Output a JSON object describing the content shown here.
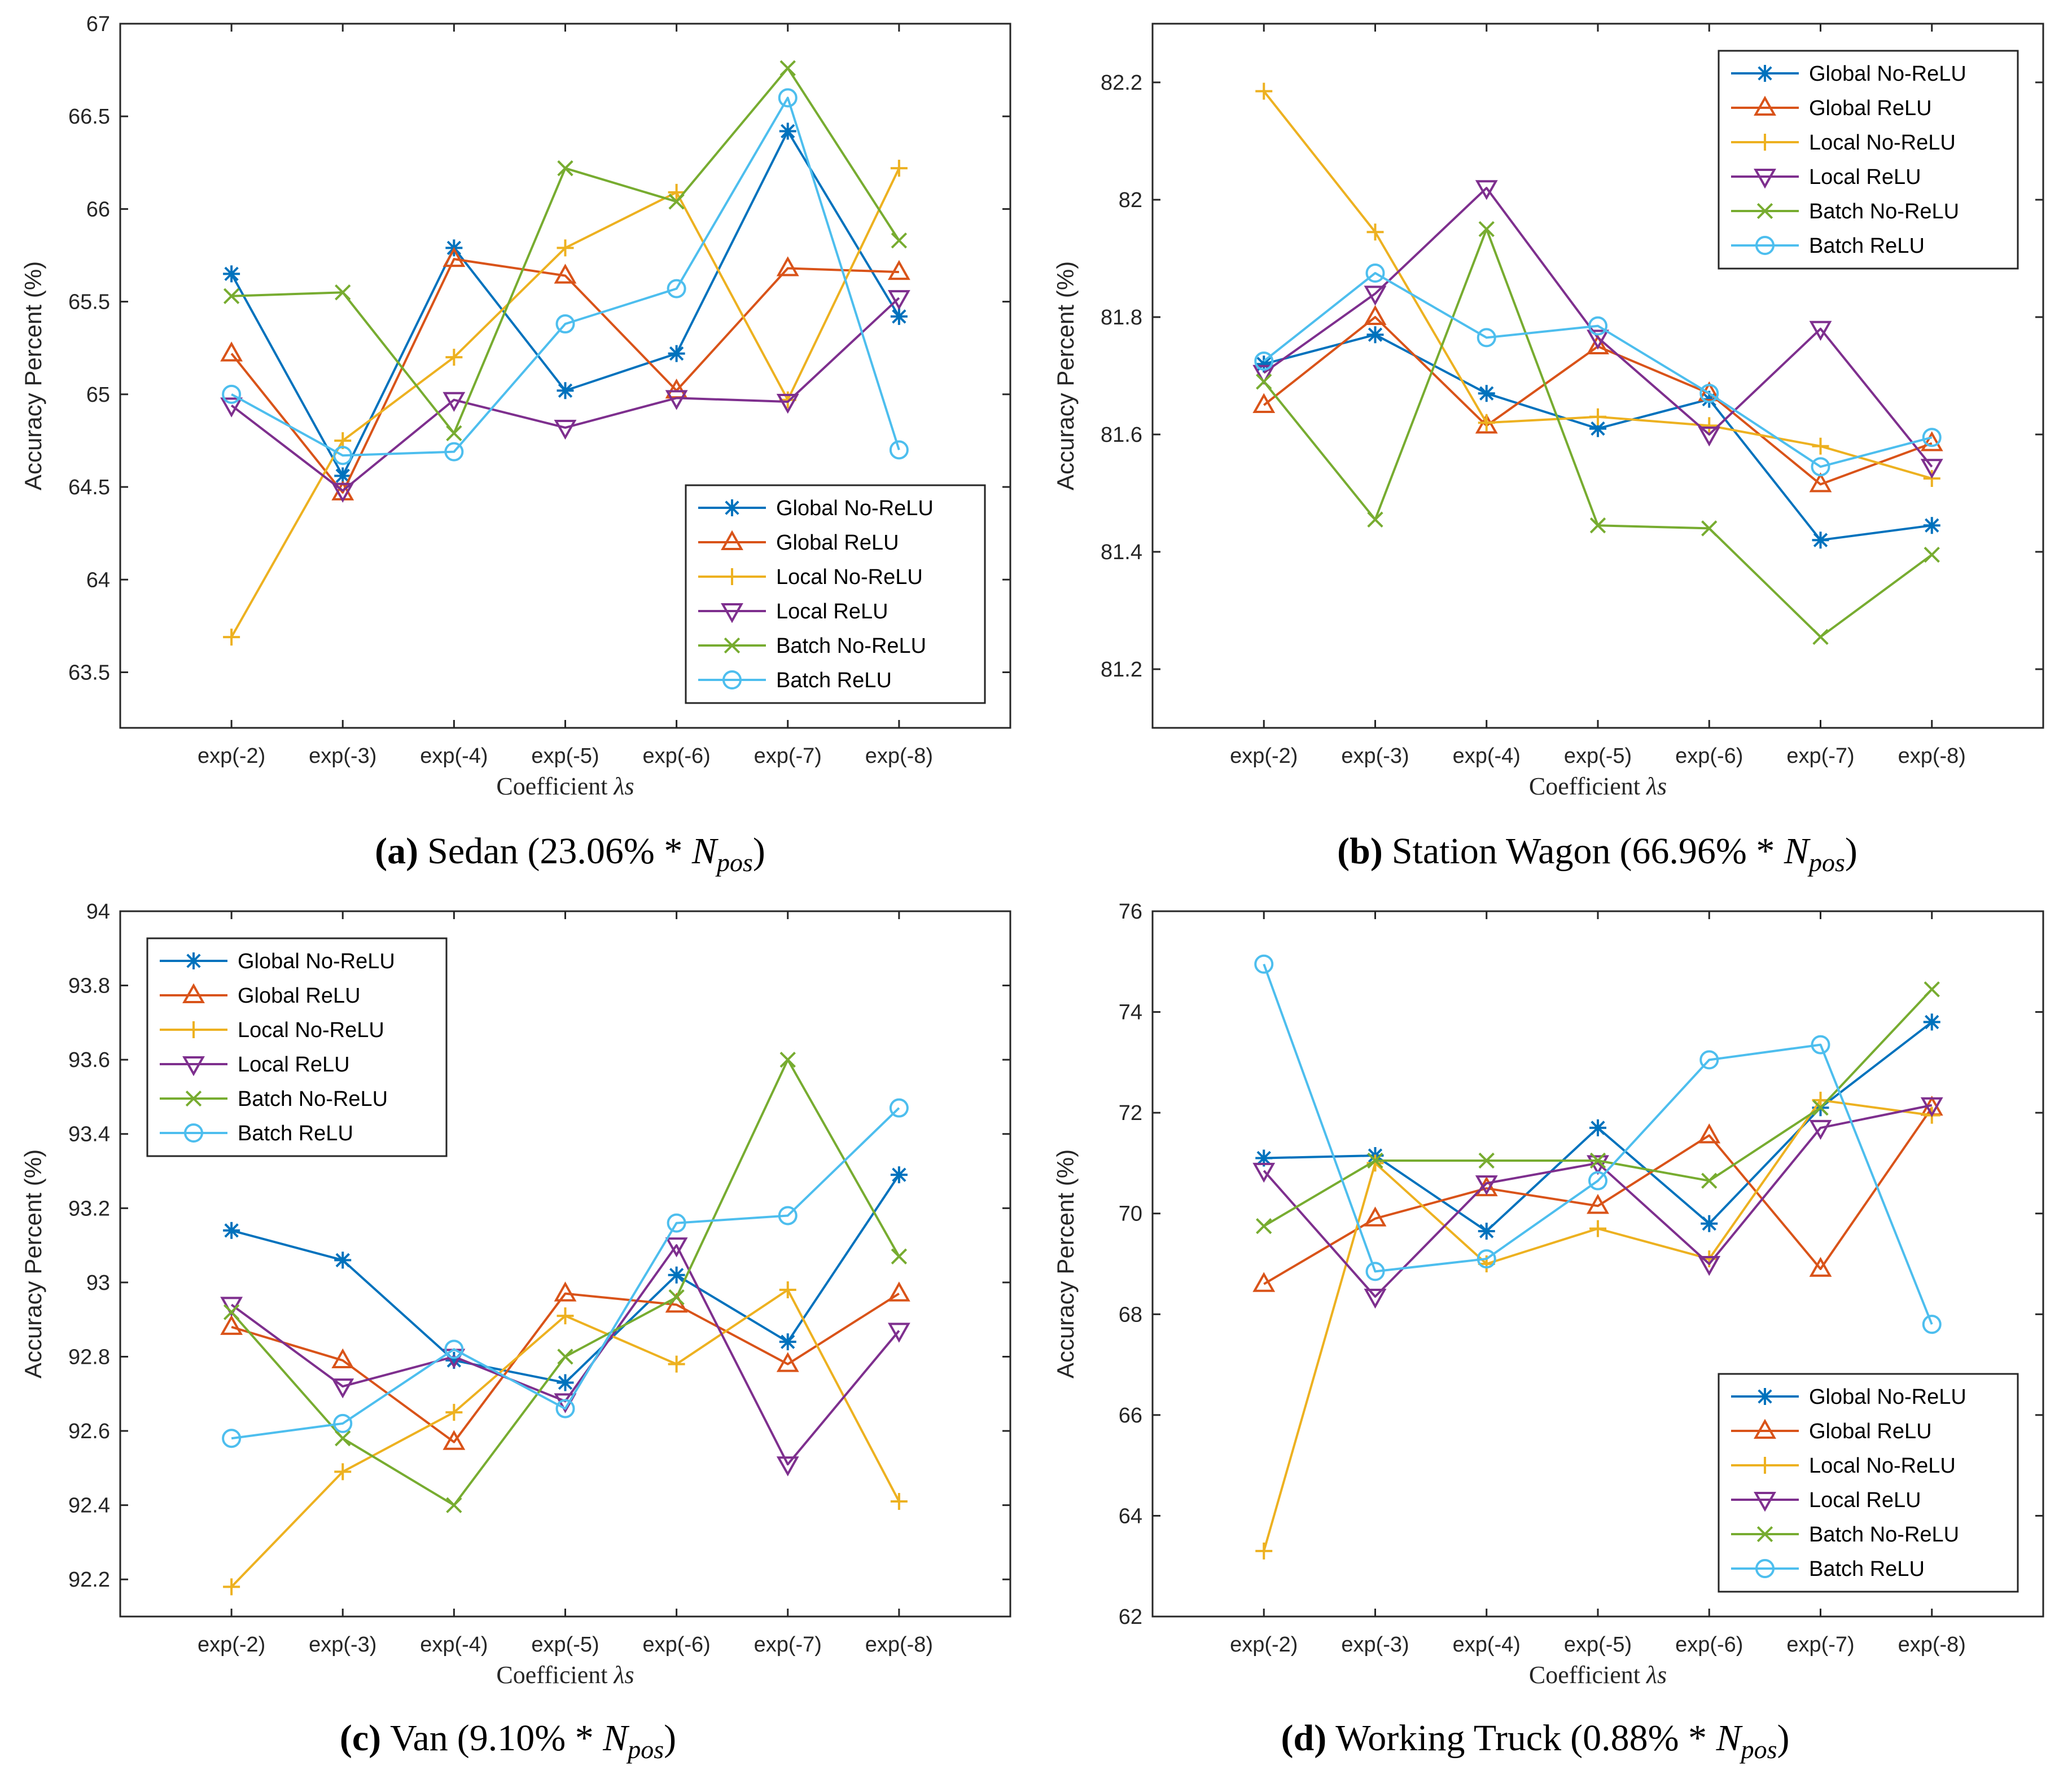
{
  "figure": {
    "colors": {
      "Global No-ReLU": "#0072BD",
      "Global ReLU": "#D95319",
      "Local No-ReLU": "#EDB120",
      "Local ReLU": "#7E2F8E",
      "Batch No-ReLU": "#77AC30",
      "Batch ReLU": "#4DBEEE"
    }
  },
  "chart_data": [
    {
      "type": "line",
      "panel": "a",
      "caption": {
        "letter": "(a)",
        "name": "Sedan",
        "share": "(23.06% * ",
        "var_main": "N",
        "var_sub": "pos",
        "close": ")"
      },
      "xlabel": {
        "text": "Coefficient ",
        "symbol": "λs"
      },
      "ylabel": "Accuracy Percent (%)",
      "categories": [
        "exp(-2)",
        "exp(-3)",
        "exp(-4)",
        "exp(-5)",
        "exp(-6)",
        "exp(-7)",
        "exp(-8)"
      ],
      "ylim": [
        63.2,
        67
      ],
      "yticks": [
        63.5,
        64,
        64.5,
        65,
        65.5,
        66,
        66.5,
        67
      ],
      "ytick_labels": [
        "63.5",
        "64",
        "64.5",
        "65",
        "65.5",
        "66",
        "66.5",
        "67"
      ],
      "legend_position": "bottom-right",
      "series": [
        {
          "name": "Global No-ReLU",
          "marker": "asterisk",
          "values": [
            65.65,
            64.56,
            65.79,
            65.02,
            65.22,
            66.42,
            65.42
          ]
        },
        {
          "name": "Global ReLU",
          "marker": "triangle",
          "values": [
            65.22,
            64.47,
            65.73,
            65.64,
            65.02,
            65.68,
            65.66
          ]
        },
        {
          "name": "Local No-ReLU",
          "marker": "plus",
          "values": [
            63.69,
            64.75,
            65.2,
            65.79,
            66.09,
            64.97,
            66.22
          ]
        },
        {
          "name": "Local ReLU",
          "marker": "triangle-down",
          "values": [
            64.94,
            64.48,
            64.97,
            64.82,
            64.98,
            64.96,
            65.52
          ]
        },
        {
          "name": "Batch No-ReLU",
          "marker": "x",
          "values": [
            65.53,
            65.55,
            64.79,
            66.22,
            66.04,
            66.76,
            65.83
          ]
        },
        {
          "name": "Batch ReLU",
          "marker": "circle",
          "values": [
            65.0,
            64.67,
            64.69,
            65.38,
            65.57,
            66.6,
            64.7
          ]
        }
      ]
    },
    {
      "type": "line",
      "panel": "b",
      "caption": {
        "letter": "(b)",
        "name": "Station Wagon",
        "share": "(66.96% * ",
        "var_main": "N",
        "var_sub": "pos",
        "close": ")"
      },
      "xlabel": {
        "text": "Coefficient ",
        "symbol": "λs"
      },
      "ylabel": "Accuracy Percent (%)",
      "categories": [
        "exp(-2)",
        "exp(-3)",
        "exp(-4)",
        "exp(-5)",
        "exp(-6)",
        "exp(-7)",
        "exp(-8)"
      ],
      "ylim": [
        81.1,
        82.3
      ],
      "yticks": [
        81.2,
        81.4,
        81.6,
        81.8,
        82,
        82.2
      ],
      "ytick_labels": [
        "81.2",
        "81.4",
        "81.6",
        "81.8",
        "82",
        "82.2"
      ],
      "legend_position": "top-right",
      "series": [
        {
          "name": "Global No-ReLU",
          "marker": "asterisk",
          "values": [
            81.72,
            81.77,
            81.67,
            81.61,
            81.66,
            81.42,
            81.445
          ]
        },
        {
          "name": "Global ReLU",
          "marker": "triangle",
          "values": [
            81.65,
            81.8,
            81.615,
            81.75,
            81.67,
            81.515,
            81.585
          ]
        },
        {
          "name": "Local No-ReLU",
          "marker": "plus",
          "values": [
            82.185,
            81.945,
            81.62,
            81.63,
            81.615,
            81.58,
            81.525
          ]
        },
        {
          "name": "Local ReLU",
          "marker": "triangle-down",
          "values": [
            81.705,
            81.84,
            82.02,
            81.765,
            81.6,
            81.78,
            81.545
          ]
        },
        {
          "name": "Batch No-ReLU",
          "marker": "x",
          "values": [
            81.69,
            81.455,
            81.95,
            81.445,
            81.44,
            81.255,
            81.395
          ]
        },
        {
          "name": "Batch ReLU",
          "marker": "circle",
          "values": [
            81.725,
            81.875,
            81.765,
            81.785,
            81.67,
            81.545,
            81.595
          ]
        }
      ]
    },
    {
      "type": "line",
      "panel": "c",
      "caption": {
        "letter": "(c)",
        "name": "Van",
        "share": "(9.10% * ",
        "var_main": "N",
        "var_sub": "pos",
        "close": ")"
      },
      "xlabel": {
        "text": "Coefficient ",
        "symbol": "λs"
      },
      "ylabel": "Accuracy Percent (%)",
      "categories": [
        "exp(-2)",
        "exp(-3)",
        "exp(-4)",
        "exp(-5)",
        "exp(-6)",
        "exp(-7)",
        "exp(-8)"
      ],
      "ylim": [
        92.1,
        94
      ],
      "yticks": [
        92.2,
        92.4,
        92.6,
        92.8,
        93,
        93.2,
        93.4,
        93.6,
        93.8,
        94
      ],
      "ytick_labels": [
        "92.2",
        "92.4",
        "92.6",
        "92.8",
        "93",
        "93.2",
        "93.4",
        "93.6",
        "93.8",
        "94"
      ],
      "legend_position": "top-left",
      "series": [
        {
          "name": "Global No-ReLU",
          "marker": "asterisk",
          "values": [
            93.14,
            93.06,
            92.79,
            92.73,
            93.02,
            92.84,
            93.29
          ]
        },
        {
          "name": "Global ReLU",
          "marker": "triangle",
          "values": [
            92.88,
            92.79,
            92.57,
            92.97,
            92.94,
            92.78,
            92.97
          ]
        },
        {
          "name": "Local No-ReLU",
          "marker": "plus",
          "values": [
            92.18,
            92.49,
            92.65,
            92.91,
            92.78,
            92.98,
            92.41
          ]
        },
        {
          "name": "Local ReLU",
          "marker": "triangle-down",
          "values": [
            92.94,
            92.72,
            92.8,
            92.68,
            93.1,
            92.51,
            92.87
          ]
        },
        {
          "name": "Batch No-ReLU",
          "marker": "x",
          "values": [
            92.92,
            92.58,
            92.4,
            92.8,
            92.96,
            93.6,
            93.07
          ]
        },
        {
          "name": "Batch ReLU",
          "marker": "circle",
          "values": [
            92.58,
            92.62,
            92.82,
            92.66,
            93.16,
            93.18,
            93.47
          ]
        }
      ]
    },
    {
      "type": "line",
      "panel": "d",
      "caption": {
        "letter": "(d)",
        "name": "Working Truck",
        "share": "(0.88% * ",
        "var_main": "N",
        "var_sub": "pos",
        "close": ")"
      },
      "xlabel": {
        "text": "Coefficient ",
        "symbol": "λs"
      },
      "ylabel": "Accuracy Percent (%)",
      "categories": [
        "exp(-2)",
        "exp(-3)",
        "exp(-4)",
        "exp(-5)",
        "exp(-6)",
        "exp(-7)",
        "exp(-8)"
      ],
      "ylim": [
        62,
        76
      ],
      "yticks": [
        62,
        64,
        66,
        68,
        70,
        72,
        74,
        76
      ],
      "ytick_labels": [
        "62",
        "64",
        "66",
        "68",
        "70",
        "72",
        "74",
        "76"
      ],
      "legend_position": "bottom-right",
      "series": [
        {
          "name": "Global No-ReLU",
          "marker": "asterisk",
          "values": [
            71.1,
            71.15,
            69.65,
            71.7,
            69.8,
            72.1,
            73.8
          ]
        },
        {
          "name": "Global ReLU",
          "marker": "triangle",
          "values": [
            68.6,
            69.9,
            70.5,
            70.15,
            71.55,
            68.9,
            72.1
          ]
        },
        {
          "name": "Local No-ReLU",
          "marker": "plus",
          "values": [
            63.3,
            71.0,
            69.0,
            69.7,
            69.1,
            72.25,
            71.95
          ]
        },
        {
          "name": "Local ReLU",
          "marker": "triangle-down",
          "values": [
            70.85,
            68.35,
            70.6,
            71.0,
            69.0,
            71.7,
            72.15
          ]
        },
        {
          "name": "Batch No-ReLU",
          "marker": "x",
          "values": [
            69.75,
            71.05,
            71.05,
            71.05,
            70.65,
            72.1,
            74.45
          ]
        },
        {
          "name": "Batch ReLU",
          "marker": "circle",
          "values": [
            74.95,
            68.85,
            69.1,
            70.65,
            73.05,
            73.35,
            67.8
          ]
        }
      ]
    }
  ]
}
